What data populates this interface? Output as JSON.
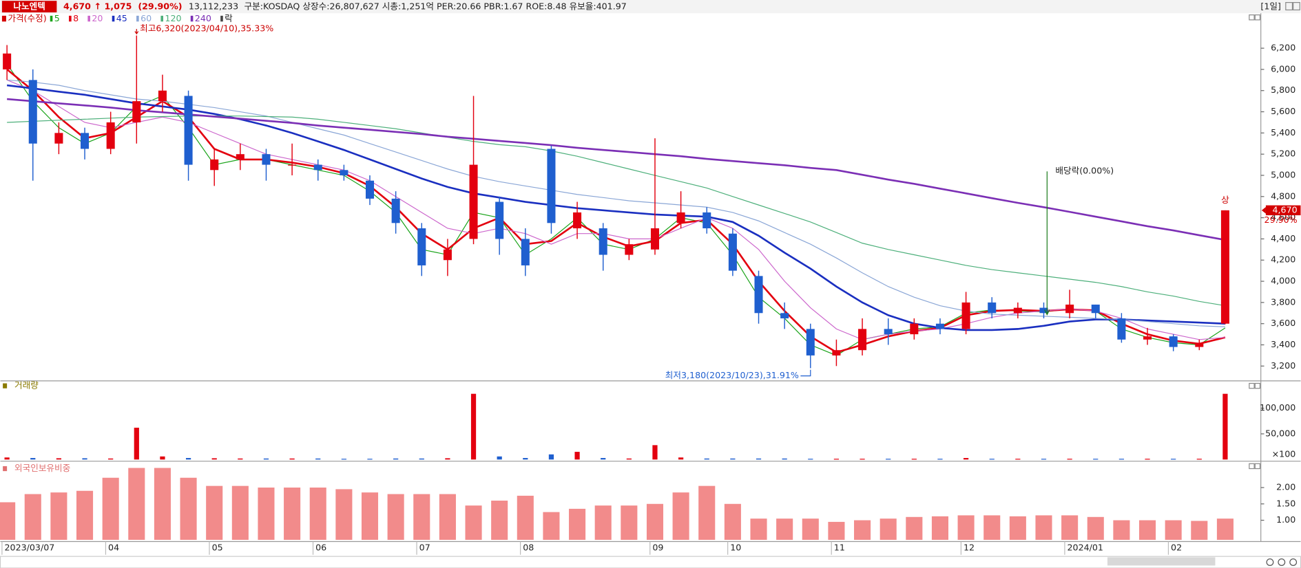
{
  "header": {
    "name": "나노엔텍",
    "price": "4,670",
    "change": "↑ 1,075",
    "change_pct": "(29.90%)",
    "volume": "13,112,233",
    "info": "구분:KOSDAQ 상장수:26,807,627 시총:1,251억 PER:20.66 PBR:1.67 ROE:8.48 유보율:401.97",
    "period": "[1일]"
  },
  "chart_data": [
    {
      "type": "candlestick",
      "legend_title": "가격(수정)",
      "legend_extra": "락",
      "categories": [
        "2023/03/07",
        null,
        null,
        null,
        "04",
        null,
        null,
        null,
        "05",
        null,
        null,
        null,
        "06",
        null,
        null,
        null,
        "07",
        null,
        null,
        null,
        "08",
        null,
        null,
        null,
        null,
        "09",
        null,
        null,
        "10",
        null,
        null,
        null,
        "11",
        null,
        null,
        null,
        null,
        "12",
        null,
        null,
        null,
        "2024/01",
        null,
        null,
        null,
        "02",
        null,
        null
      ],
      "open": [
        6000,
        5900,
        5300,
        5400,
        5250,
        5500,
        5700,
        5750,
        5050,
        5150,
        5200,
        5100,
        5100,
        5050,
        4950,
        4780,
        4500,
        4200,
        4400,
        4750,
        4400,
        5250,
        4500,
        4500,
        4250,
        4300,
        4550,
        4650,
        4450,
        4050,
        3700,
        3550,
        3300,
        3350,
        3550,
        3500,
        3600,
        3550,
        3800,
        3700,
        3750,
        3700,
        3780,
        3650,
        3450,
        3480,
        3380,
        3600
      ],
      "high": [
        6230,
        6000,
        5500,
        5450,
        5600,
        6320,
        5950,
        5800,
        5250,
        5300,
        5250,
        5300,
        5150,
        5100,
        5000,
        4850,
        4550,
        4400,
        5750,
        4800,
        4500,
        5280,
        4750,
        4550,
        4400,
        5350,
        4850,
        4700,
        4500,
        4100,
        3800,
        3600,
        3450,
        3650,
        3650,
        3650,
        3650,
        3900,
        3850,
        3800,
        3800,
        3920,
        3780,
        3700,
        3560,
        3500,
        3450,
        4670
      ],
      "low": [
        5900,
        4950,
        5200,
        5150,
        5200,
        5300,
        5600,
        4950,
        4900,
        5050,
        4950,
        5000,
        4950,
        4950,
        4720,
        4450,
        4050,
        4050,
        4350,
        4250,
        4050,
        4450,
        4400,
        4100,
        4200,
        4250,
        4500,
        4450,
        4050,
        3600,
        3550,
        3180,
        3200,
        3300,
        3400,
        3450,
        3500,
        3500,
        3650,
        3650,
        3650,
        3650,
        3650,
        3420,
        3400,
        3340,
        3350,
        3595
      ],
      "close": [
        6150,
        5300,
        5400,
        5250,
        5500,
        5700,
        5800,
        5100,
        5150,
        5200,
        5100,
        5100,
        5050,
        5000,
        4780,
        4550,
        4150,
        4300,
        5100,
        4400,
        4150,
        4550,
        4650,
        4250,
        4350,
        4500,
        4650,
        4500,
        4100,
        3700,
        3650,
        3300,
        3350,
        3550,
        3500,
        3600,
        3550,
        3800,
        3700,
        3750,
        3700,
        3780,
        3700,
        3450,
        3480,
        3380,
        3420,
        4670
      ],
      "up_color": "#e3000f",
      "down_color": "#1f5fcf",
      "series": [
        {
          "name": "5",
          "color": "#19a319",
          "width": 1,
          "values": [
            6050,
            5700,
            5450,
            5300,
            5400,
            5650,
            5750,
            5450,
            5100,
            5150,
            5150,
            5100,
            5050,
            5000,
            4850,
            4650,
            4300,
            4250,
            4650,
            4600,
            4250,
            4400,
            4600,
            4350,
            4300,
            4400,
            4600,
            4550,
            4250,
            3850,
            3650,
            3400,
            3300,
            3450,
            3500,
            3550,
            3570,
            3700,
            3730,
            3720,
            3710,
            3740,
            3720,
            3550,
            3470,
            3420,
            3400,
            3560
          ]
        },
        {
          "name": "8",
          "color": "#e3000f",
          "width": 2.2,
          "values": [
            6000,
            5800,
            5550,
            5350,
            5400,
            5550,
            5700,
            5550,
            5250,
            5150,
            5150,
            5120,
            5080,
            5020,
            4900,
            4700,
            4450,
            4300,
            4500,
            4600,
            4350,
            4380,
            4550,
            4420,
            4330,
            4380,
            4550,
            4580,
            4350,
            4000,
            3720,
            3480,
            3330,
            3400,
            3480,
            3530,
            3560,
            3680,
            3720,
            3730,
            3720,
            3735,
            3725,
            3600,
            3500,
            3440,
            3410,
            3470
          ]
        },
        {
          "name": "20",
          "color": "#cc66cc",
          "width": 1,
          "values": [
            5900,
            5800,
            5650,
            5500,
            5450,
            5500,
            5550,
            5500,
            5400,
            5300,
            5200,
            5150,
            5100,
            5050,
            4950,
            4800,
            4650,
            4500,
            4450,
            4500,
            4450,
            4350,
            4450,
            4450,
            4400,
            4400,
            4500,
            4600,
            4500,
            4300,
            4000,
            3750,
            3550,
            3450,
            3500,
            3530,
            3550,
            3600,
            3660,
            3700,
            3720,
            3740,
            3720,
            3650,
            3550,
            3500,
            3450,
            3470
          ]
        },
        {
          "name": "45",
          "color": "#1a2fc0",
          "width": 2.2,
          "values": [
            5850,
            5820,
            5790,
            5760,
            5720,
            5680,
            5650,
            5620,
            5580,
            5530,
            5470,
            5400,
            5320,
            5240,
            5150,
            5060,
            4970,
            4890,
            4830,
            4790,
            4750,
            4720,
            4690,
            4670,
            4650,
            4630,
            4620,
            4610,
            4560,
            4430,
            4270,
            4120,
            3950,
            3800,
            3680,
            3600,
            3560,
            3540,
            3540,
            3550,
            3580,
            3620,
            3640,
            3640,
            3630,
            3620,
            3610,
            3600
          ]
        },
        {
          "name": "60",
          "color": "#8aa6d6",
          "width": 1,
          "values": [
            5900,
            5880,
            5850,
            5800,
            5760,
            5720,
            5700,
            5670,
            5640,
            5600,
            5560,
            5500,
            5440,
            5380,
            5300,
            5220,
            5140,
            5060,
            4990,
            4940,
            4900,
            4860,
            4820,
            4790,
            4760,
            4740,
            4720,
            4700,
            4650,
            4570,
            4460,
            4350,
            4220,
            4080,
            3950,
            3850,
            3770,
            3720,
            3690,
            3680,
            3670,
            3660,
            3650,
            3640,
            3620,
            3600,
            3580,
            3570
          ]
        },
        {
          "name": "120",
          "color": "#4caf7a",
          "width": 1,
          "values": [
            5500,
            5510,
            5520,
            5530,
            5540,
            5550,
            5555,
            5560,
            5560,
            5560,
            5555,
            5550,
            5530,
            5500,
            5470,
            5440,
            5400,
            5360,
            5320,
            5290,
            5270,
            5230,
            5180,
            5120,
            5060,
            5000,
            4940,
            4880,
            4800,
            4720,
            4640,
            4560,
            4460,
            4360,
            4300,
            4250,
            4200,
            4150,
            4110,
            4080,
            4050,
            4020,
            3990,
            3950,
            3900,
            3860,
            3810,
            3770
          ]
        },
        {
          "name": "240",
          "color": "#7b2fb5",
          "width": 2.2,
          "values": [
            5720,
            5700,
            5680,
            5660,
            5640,
            5615,
            5595,
            5575,
            5555,
            5535,
            5515,
            5495,
            5470,
            5450,
            5430,
            5410,
            5390,
            5365,
            5345,
            5325,
            5305,
            5285,
            5260,
            5240,
            5220,
            5200,
            5180,
            5155,
            5135,
            5115,
            5095,
            5070,
            5050,
            5005,
            4960,
            4920,
            4875,
            4830,
            4785,
            4740,
            4700,
            4655,
            4610,
            4565,
            4520,
            4480,
            4435,
            4390
          ]
        }
      ],
      "ylim": [
        3060,
        6530
      ],
      "yticks": [
        {
          "value": 3200,
          "label": "3,200"
        },
        {
          "value": 3400,
          "label": "3,400"
        },
        {
          "value": 3600,
          "label": "3,600"
        },
        {
          "value": 3800,
          "label": "3,800"
        },
        {
          "value": 4000,
          "label": "4,000"
        },
        {
          "value": 4200,
          "label": "4,200"
        },
        {
          "value": 4400,
          "label": "4,400"
        },
        {
          "value": 4600,
          "label": "4,600"
        },
        {
          "value": 4800,
          "label": "4,800"
        },
        {
          "value": 5000,
          "label": "5,000"
        },
        {
          "value": 5200,
          "label": "5,200"
        },
        {
          "value": 5400,
          "label": "5,400"
        },
        {
          "value": 5600,
          "label": "5,600"
        },
        {
          "value": 5800,
          "label": "5,800"
        },
        {
          "value": 6000,
          "label": "6,000"
        },
        {
          "value": 6200,
          "label": "6,200"
        }
      ],
      "high_label": "최고6,320(2023/04/10),35.33%",
      "low_label": "최저3,180(2023/10/23),31.91%",
      "dividend_label": "배당락(0.00%)",
      "limit_up_label": "상",
      "last_price_label": "4,670",
      "last_change_label": "29.90%"
    },
    {
      "type": "bar",
      "title": "거래량",
      "unit_label": "×100",
      "values": [
        4000,
        3000,
        2500,
        2500,
        2000,
        62000,
        6000,
        3000,
        2500,
        2000,
        2000,
        2000,
        2000,
        1500,
        1500,
        2000,
        2000,
        2500,
        128000,
        6000,
        3000,
        10000,
        15000,
        3000,
        2000,
        28000,
        4000,
        2000,
        2000,
        2000,
        2000,
        1500,
        1500,
        1500,
        1500,
        1500,
        1500,
        3000,
        1500,
        1500,
        1500,
        1500,
        1500,
        1500,
        1500,
        1500,
        1500,
        128000
      ],
      "ylim": [
        0,
        143500
      ],
      "yticks": [
        {
          "value": 100000,
          "label": "100,000"
        },
        {
          "value": 50000,
          "label": "50,000"
        }
      ]
    },
    {
      "type": "bar",
      "title": "외국인보유비중",
      "color": "#f28b8b",
      "values": [
        1.55,
        1.8,
        1.85,
        1.9,
        2.3,
        2.6,
        2.6,
        2.3,
        2.05,
        2.05,
        2.0,
        2.0,
        2.0,
        1.95,
        1.85,
        1.8,
        1.8,
        1.8,
        1.45,
        1.6,
        1.75,
        1.25,
        1.35,
        1.45,
        1.45,
        1.5,
        1.85,
        2.05,
        1.5,
        1.05,
        1.05,
        1.05,
        0.95,
        1.0,
        1.05,
        1.1,
        1.12,
        1.15,
        1.15,
        1.12,
        1.15,
        1.15,
        1.1,
        1.0,
        1.0,
        1.0,
        0.98,
        1.05
      ],
      "ylim": [
        0.4,
        2.68
      ],
      "yticks": [
        {
          "value": 2,
          "label": "2.00"
        },
        {
          "value": 1.5,
          "label": "1.50"
        },
        {
          "value": 1,
          "label": "1.00"
        }
      ]
    }
  ]
}
